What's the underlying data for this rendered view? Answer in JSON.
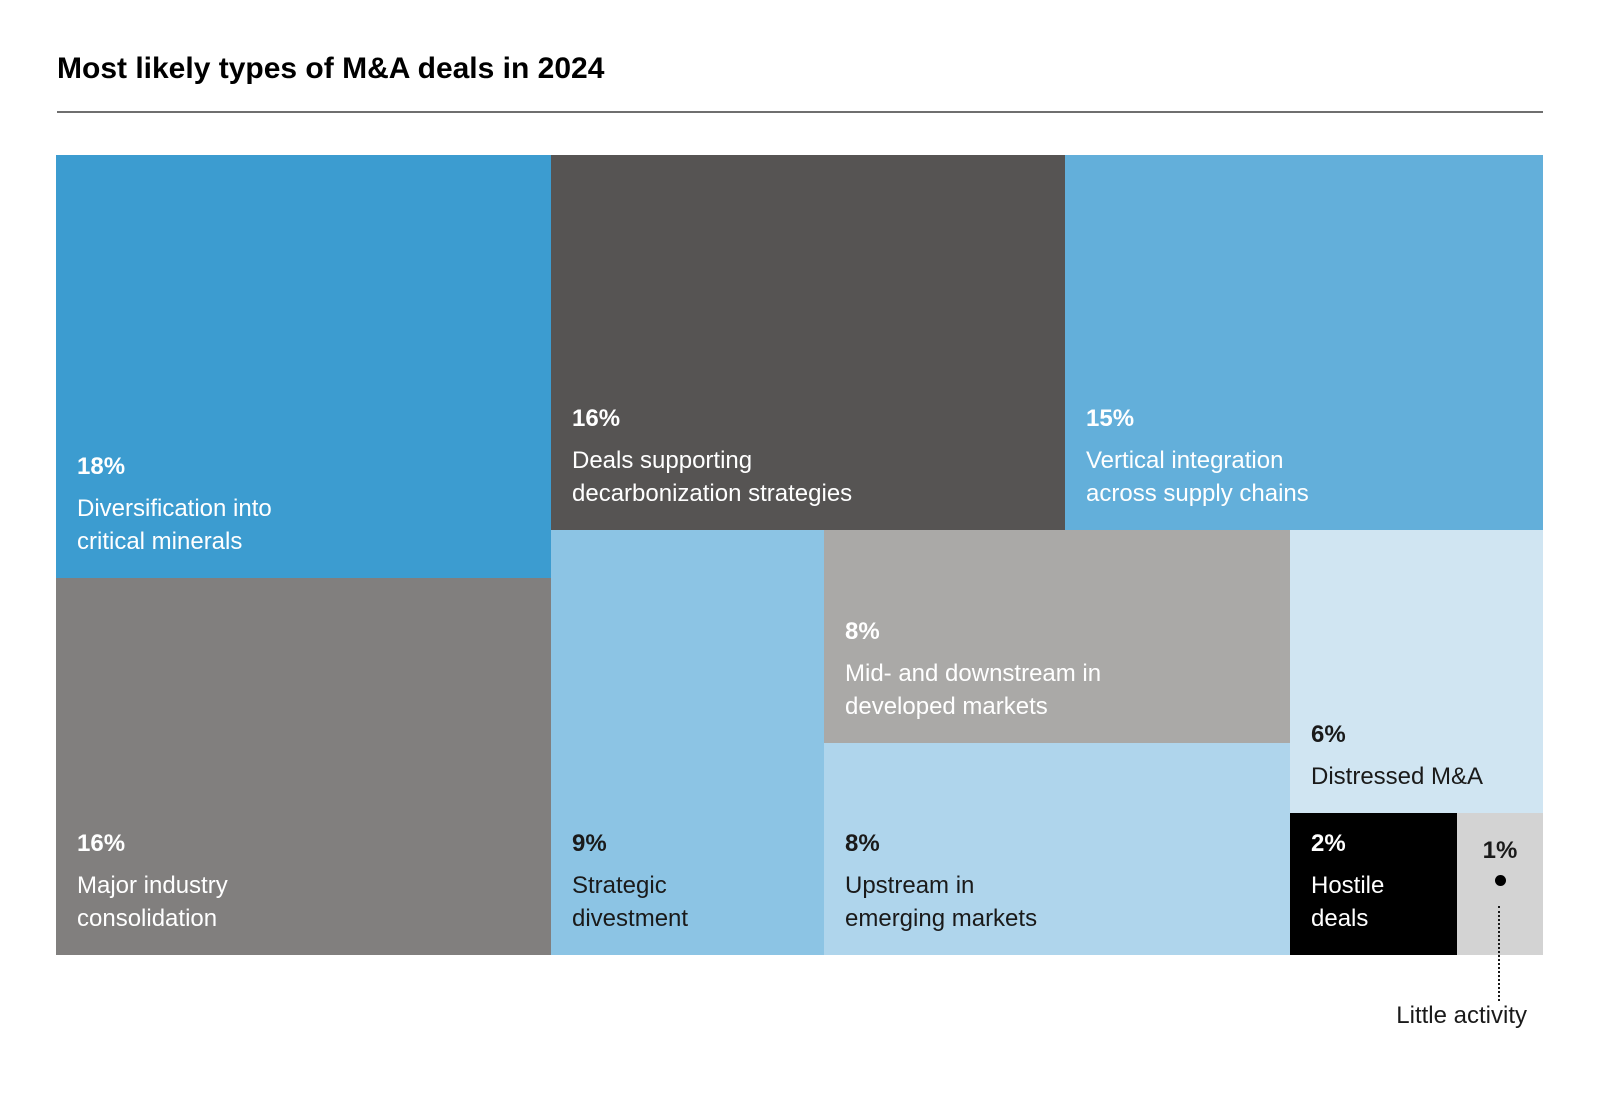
{
  "title": "Most likely types of M&A deals in 2024",
  "divider_color": "#6F6F6F",
  "annotation": {
    "label": "Little activity",
    "marker": "dot",
    "points_to": "1% tile"
  },
  "chart_data": {
    "type": "treemap",
    "title": "Most likely types of M&A deals in 2024",
    "unit": "percent",
    "legend": "none",
    "items": [
      {
        "id": "diversification-critical-minerals",
        "value": 18,
        "value_label": "18%",
        "label": "Diversification into critical minerals",
        "label_lines": [
          "Diversification into",
          "critical minerals"
        ],
        "bg": "#3C9CD0",
        "fg": "#FFFFFF"
      },
      {
        "id": "decarbonization-deals",
        "value": 16,
        "value_label": "16%",
        "label": "Deals supporting decarbonization strategies",
        "label_lines": [
          "Deals supporting",
          "decarbonization strategies"
        ],
        "bg": "#565453",
        "fg": "#FFFFFF"
      },
      {
        "id": "vertical-integration",
        "value": 15,
        "value_label": "15%",
        "label": "Vertical integration across supply chains",
        "label_lines": [
          "Vertical integration",
          "across supply chains"
        ],
        "bg": "#63AFDA",
        "fg": "#FFFFFF"
      },
      {
        "id": "major-industry-consolidation",
        "value": 16,
        "value_label": "16%",
        "label": "Major industry consolidation",
        "label_lines": [
          "Major industry",
          "consolidation"
        ],
        "bg": "#817F7E",
        "fg": "#FFFFFF"
      },
      {
        "id": "strategic-divestment",
        "value": 9,
        "value_label": "9%",
        "label": "Strategic divestment",
        "label_lines": [
          "Strategic",
          "divestment"
        ],
        "bg": "#8CC4E4",
        "fg": "#1A1A1A"
      },
      {
        "id": "mid-downstream-developed",
        "value": 8,
        "value_label": "8%",
        "label": "Mid- and downstream in developed markets",
        "label_lines": [
          "Mid- and downstream in",
          "developed markets"
        ],
        "bg": "#AAA9A7",
        "fg": "#FFFFFF"
      },
      {
        "id": "upstream-emerging",
        "value": 8,
        "value_label": "8%",
        "label": "Upstream in emerging markets",
        "label_lines": [
          "Upstream in",
          "emerging markets"
        ],
        "bg": "#AFD5EC",
        "fg": "#1A1A1A"
      },
      {
        "id": "distressed-ma",
        "value": 6,
        "value_label": "6%",
        "label": "Distressed M&A",
        "label_lines": [
          "Distressed M&A"
        ],
        "bg": "#D0E5F2",
        "fg": "#1A1A1A"
      },
      {
        "id": "hostile-deals",
        "value": 2,
        "value_label": "2%",
        "label": "Hostile deals",
        "label_lines": [
          "Hostile",
          "deals"
        ],
        "bg": "#000000",
        "fg": "#FFFFFF"
      },
      {
        "id": "little-activity",
        "value": 1,
        "value_label": "1%",
        "label": "Little activity",
        "label_lines": [],
        "bg": "#D3D3D3",
        "fg": "#1A1A1A",
        "marker": "dot"
      }
    ]
  }
}
